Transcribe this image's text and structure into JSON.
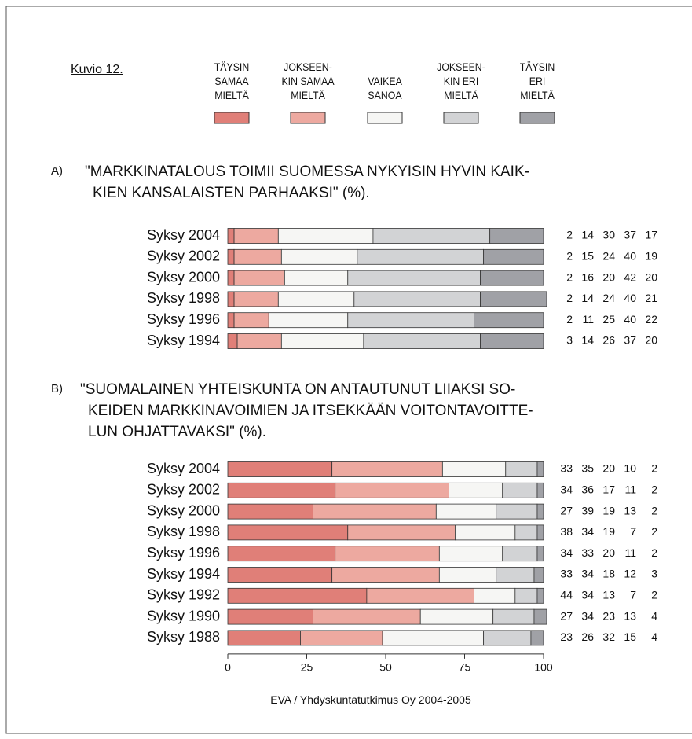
{
  "figure_label": "Kuvio 12.",
  "source": "EVA / Yhdyskuntatutkimus Oy 2004-2005",
  "chart_data": [
    {
      "type": "stacked-bar-horizontal",
      "label": "A)",
      "title": "\"MARKKINATALOUS TOIMII SUOMESSA NYKYISIN HYVIN KAIK-\nKIEN KANSALAISTEN PARHAAKSI\" (%).",
      "categories": [
        "Syksy 2004",
        "Syksy 2002",
        "Syksy 2000",
        "Syksy 1998",
        "Syksy 1996",
        "Syksy 1994"
      ],
      "xlim": [
        0,
        100
      ],
      "series": [
        {
          "name": "TÄYSIN\nSAMAA\nMIELTÄ",
          "color": "#e07f78",
          "values": [
            2,
            2,
            2,
            2,
            2,
            3
          ]
        },
        {
          "name": "JOKSEEN-\nKIN SAMAA\nMIELTÄ",
          "color": "#eda9a0",
          "values": [
            14,
            15,
            16,
            14,
            11,
            14
          ]
        },
        {
          "name": "VAIKEA\nSANOA",
          "color": "#f6f6f4",
          "values": [
            30,
            24,
            20,
            24,
            25,
            26
          ]
        },
        {
          "name": "JOKSEEN-\nKIN ERI\nMIELTÄ",
          "color": "#d2d3d5",
          "values": [
            37,
            40,
            42,
            40,
            40,
            37
          ]
        },
        {
          "name": "TÄYSIN\nERI\nMIELTÄ",
          "color": "#a0a1a6",
          "values": [
            17,
            19,
            20,
            21,
            22,
            20
          ]
        }
      ]
    },
    {
      "type": "stacked-bar-horizontal",
      "label": "B)",
      "title": "\"SUOMALAINEN YHTEISKUNTA ON ANTAUTUNUT LIIAKSI SO-\nKEIDEN MARKKINAVOIMIEN JA ITSEKKÄÄN VOITONTAVOITTE-\nLUN OHJATTAVAKSI\" (%).",
      "categories": [
        "Syksy 2004",
        "Syksy 2002",
        "Syksy 2000",
        "Syksy 1998",
        "Syksy 1996",
        "Syksy 1994",
        "Syksy 1992",
        "Syksy 1990",
        "Syksy 1988"
      ],
      "xlim": [
        0,
        100
      ],
      "xticks": [
        0,
        25,
        50,
        75,
        100
      ],
      "series": [
        {
          "values": [
            33,
            34,
            27,
            38,
            34,
            33,
            44,
            27,
            23
          ]
        },
        {
          "values": [
            35,
            36,
            39,
            34,
            33,
            34,
            34,
            34,
            26
          ]
        },
        {
          "values": [
            20,
            17,
            19,
            19,
            20,
            18,
            13,
            23,
            32
          ]
        },
        {
          "values": [
            10,
            11,
            13,
            7,
            11,
            12,
            7,
            13,
            15
          ]
        },
        {
          "values": [
            2,
            2,
            2,
            2,
            2,
            3,
            2,
            4,
            4
          ]
        }
      ]
    }
  ]
}
